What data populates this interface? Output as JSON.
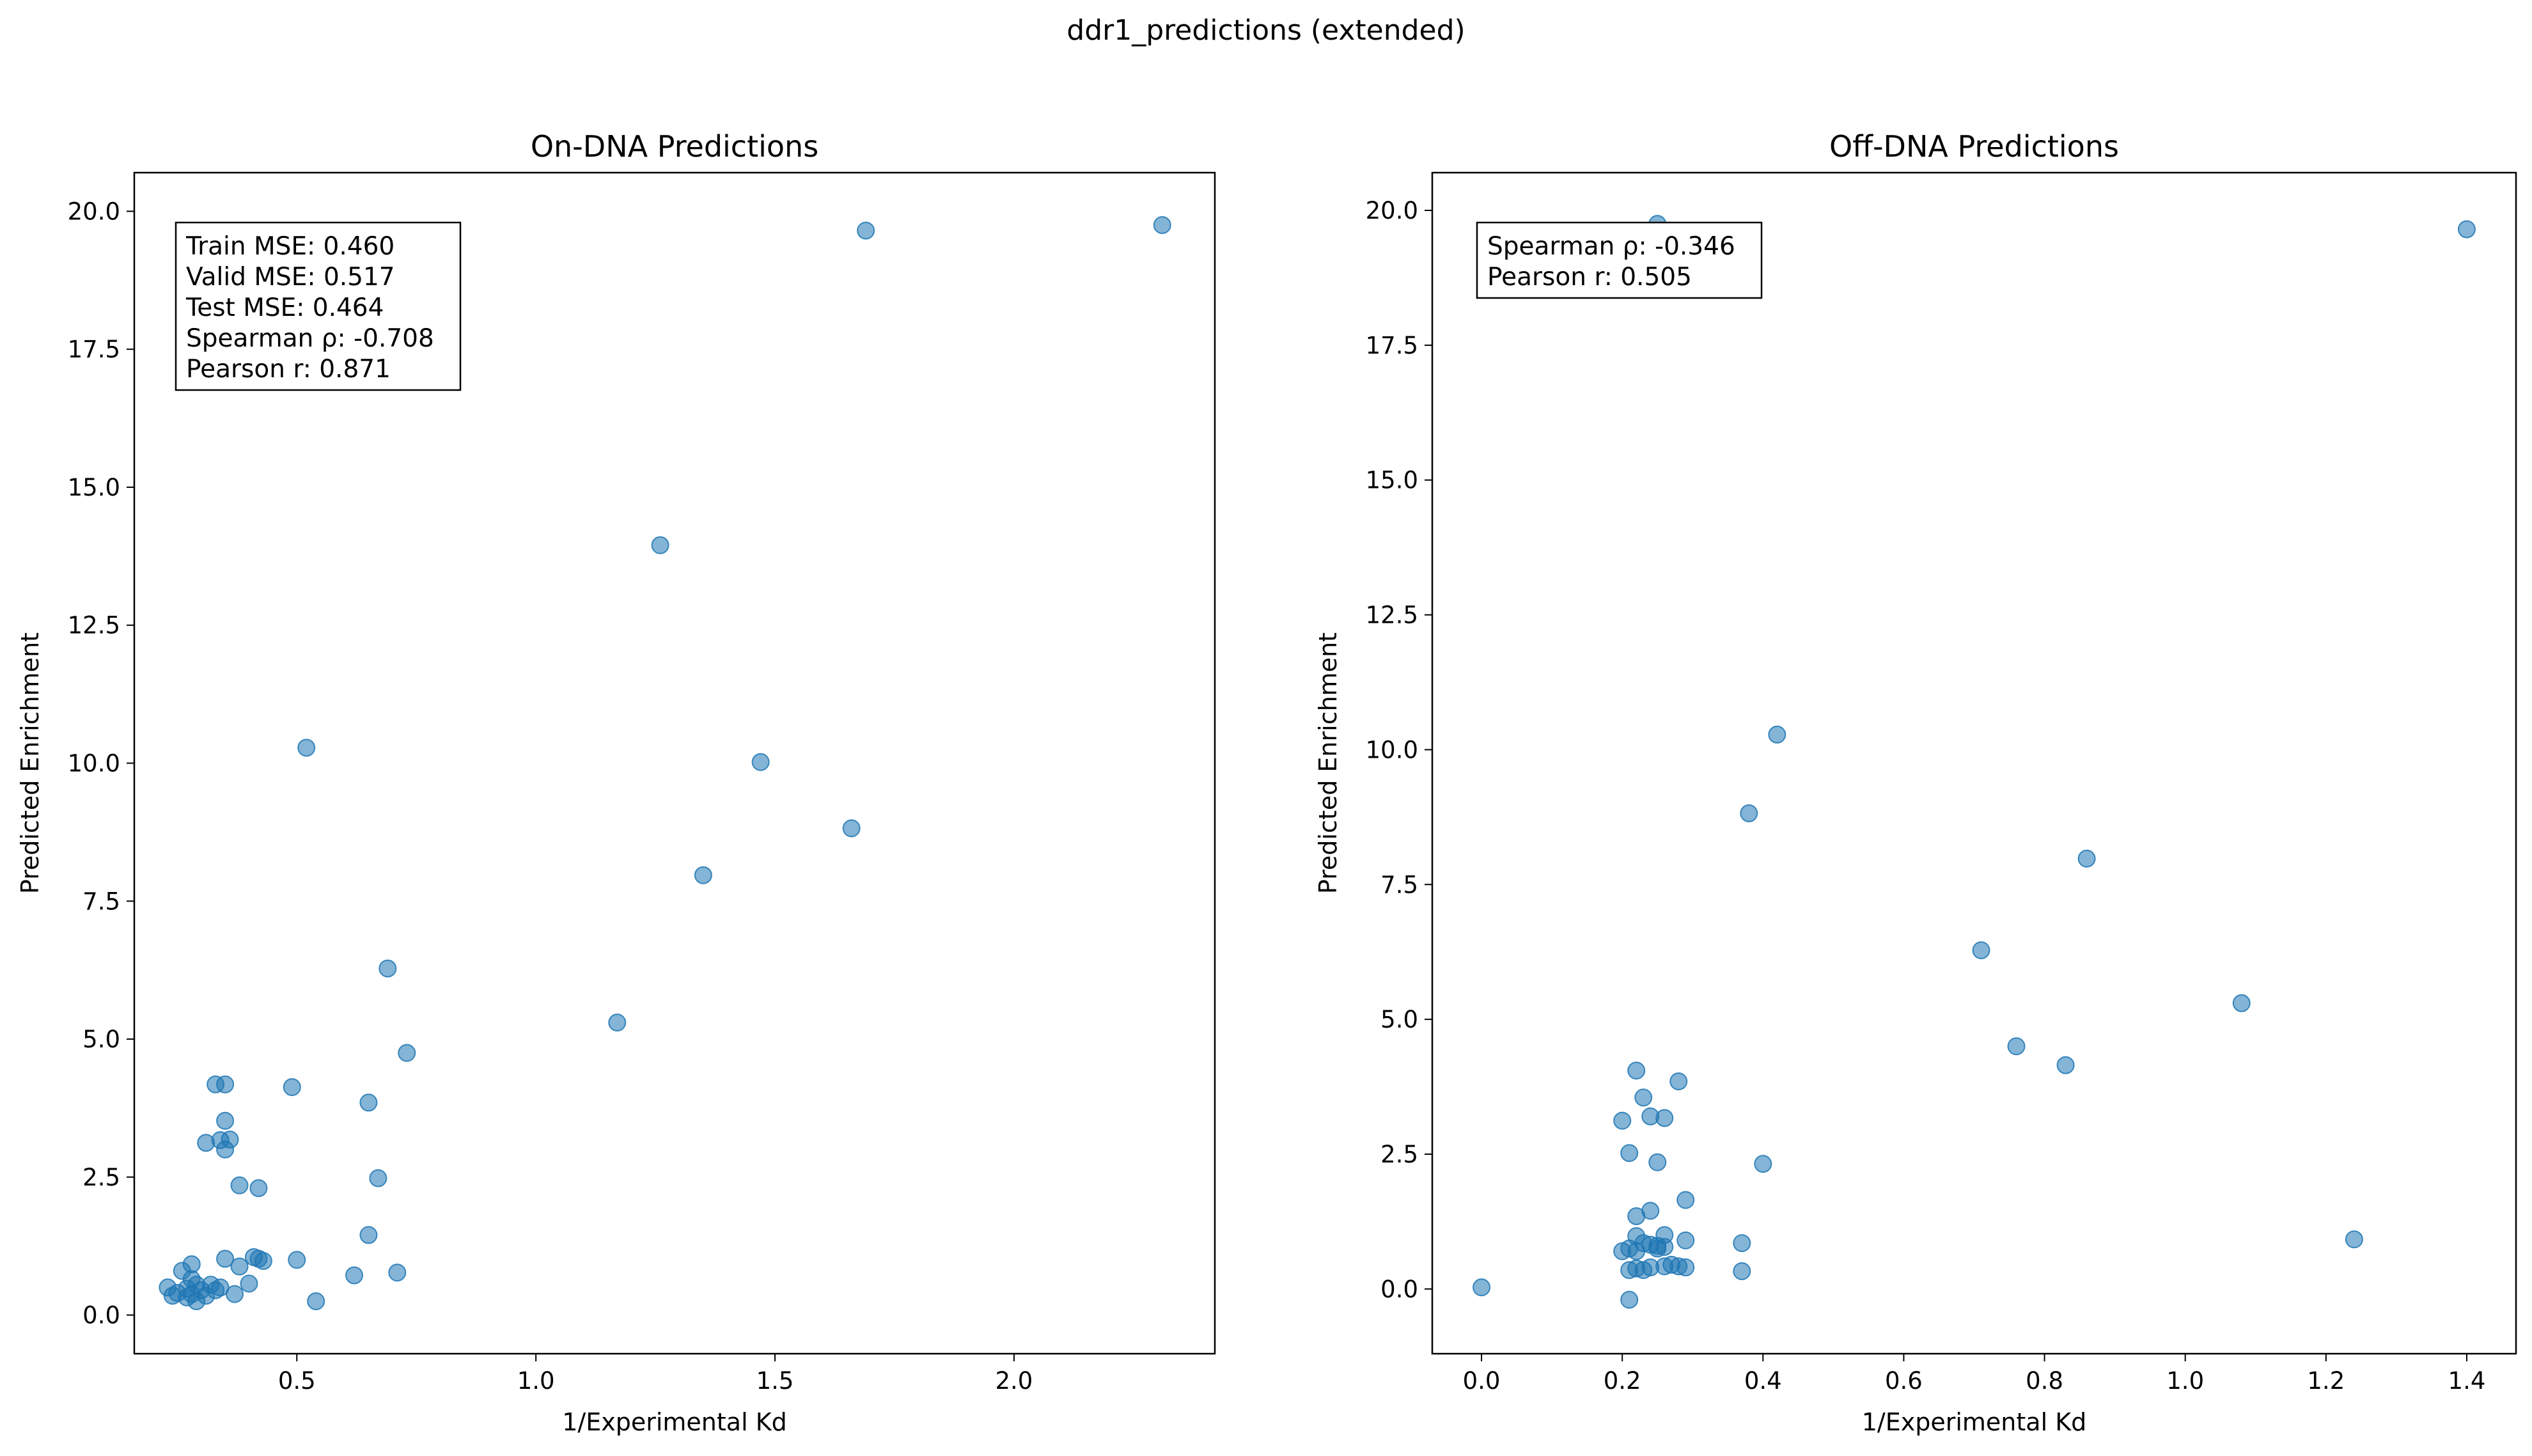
{
  "figure": {
    "suptitle": "ddr1_predictions (extended)",
    "point_color": "#1f77b4"
  },
  "chart_data": [
    {
      "type": "scatter",
      "title": "On-DNA Predictions",
      "xlabel": "1/Experimental Kd",
      "ylabel": "Predicted Enrichment",
      "xlim": [
        0.16,
        2.42
      ],
      "ylim": [
        -0.7,
        20.7
      ],
      "xticks": [
        0.5,
        1.0,
        1.5,
        2.0
      ],
      "xtick_labels": [
        "0.5",
        "1.0",
        "1.5",
        "2.0"
      ],
      "yticks": [
        0,
        2.5,
        5,
        7.5,
        10,
        12.5,
        15,
        17.5,
        20
      ],
      "ytick_labels": [
        "0.0",
        "2.5",
        "5.0",
        "7.5",
        "10.0",
        "12.5",
        "15.0",
        "17.5",
        "20.0"
      ],
      "annotation_lines": [
        "Train MSE: 0.460",
        "Valid MSE: 0.517",
        "Test MSE: 0.464",
        "Spearman ρ: -0.708",
        "Pearson r: 0.871"
      ],
      "grid": false,
      "points": [
        [
          2.31,
          19.75
        ],
        [
          1.69,
          19.65
        ],
        [
          1.26,
          13.95
        ],
        [
          0.52,
          10.28
        ],
        [
          1.47,
          10.02
        ],
        [
          1.66,
          8.82
        ],
        [
          1.35,
          7.97
        ],
        [
          0.69,
          6.28
        ],
        [
          1.17,
          5.3
        ],
        [
          0.73,
          4.75
        ],
        [
          0.33,
          4.18
        ],
        [
          0.35,
          4.18
        ],
        [
          0.49,
          4.13
        ],
        [
          0.65,
          3.85
        ],
        [
          0.35,
          3.52
        ],
        [
          0.31,
          3.12
        ],
        [
          0.34,
          3.17
        ],
        [
          0.36,
          3.18
        ],
        [
          0.35,
          3.0
        ],
        [
          0.67,
          2.48
        ],
        [
          0.38,
          2.35
        ],
        [
          0.42,
          2.3
        ],
        [
          0.65,
          1.45
        ],
        [
          0.41,
          1.05
        ],
        [
          0.42,
          1.02
        ],
        [
          0.35,
          1.02
        ],
        [
          0.5,
          1.0
        ],
        [
          0.43,
          0.98
        ],
        [
          0.28,
          0.92
        ],
        [
          0.38,
          0.88
        ],
        [
          0.26,
          0.8
        ],
        [
          0.28,
          0.65
        ],
        [
          0.71,
          0.77
        ],
        [
          0.62,
          0.72
        ],
        [
          0.4,
          0.57
        ],
        [
          0.29,
          0.55
        ],
        [
          0.32,
          0.55
        ],
        [
          0.34,
          0.5
        ],
        [
          0.23,
          0.5
        ],
        [
          0.27,
          0.48
        ],
        [
          0.33,
          0.45
        ],
        [
          0.25,
          0.4
        ],
        [
          0.28,
          0.38
        ],
        [
          0.31,
          0.35
        ],
        [
          0.24,
          0.35
        ],
        [
          0.27,
          0.32
        ],
        [
          0.37,
          0.38
        ],
        [
          0.54,
          0.25
        ],
        [
          0.29,
          0.25
        ],
        [
          0.3,
          0.45
        ]
      ]
    },
    {
      "type": "scatter",
      "title": "Off-DNA Predictions",
      "xlabel": "1/Experimental Kd",
      "ylabel": "Predicted Enrichment",
      "xlim": [
        -0.07,
        1.47
      ],
      "ylim": [
        -1.2,
        20.7
      ],
      "xticks": [
        0.0,
        0.2,
        0.4,
        0.6,
        0.8,
        1.0,
        1.2,
        1.4
      ],
      "xtick_labels": [
        "0.0",
        "0.2",
        "0.4",
        "0.6",
        "0.8",
        "1.0",
        "1.2",
        "1.4"
      ],
      "yticks": [
        0,
        2.5,
        5,
        7.5,
        10,
        12.5,
        15,
        17.5,
        20
      ],
      "ytick_labels": [
        "0.0",
        "2.5",
        "5.0",
        "7.5",
        "10.0",
        "12.5",
        "15.0",
        "17.5",
        "20.0"
      ],
      "annotation_lines": [
        "Spearman ρ: -0.346",
        "Pearson r: 0.505"
      ],
      "grid": false,
      "points": [
        [
          0.25,
          19.75
        ],
        [
          1.4,
          19.65
        ],
        [
          0.42,
          10.28
        ],
        [
          0.38,
          8.82
        ],
        [
          0.86,
          7.98
        ],
        [
          0.71,
          6.28
        ],
        [
          1.08,
          5.3
        ],
        [
          0.76,
          4.5
        ],
        [
          0.83,
          4.15
        ],
        [
          0.22,
          4.05
        ],
        [
          0.28,
          3.85
        ],
        [
          0.23,
          3.55
        ],
        [
          0.24,
          3.2
        ],
        [
          0.26,
          3.17
        ],
        [
          0.2,
          3.12
        ],
        [
          0.21,
          2.52
        ],
        [
          0.25,
          2.35
        ],
        [
          0.4,
          2.32
        ],
        [
          0.29,
          1.65
        ],
        [
          0.24,
          1.45
        ],
        [
          0.22,
          1.35
        ],
        [
          0.22,
          0.98
        ],
        [
          0.26,
          1.0
        ],
        [
          0.29,
          0.9
        ],
        [
          0.37,
          0.85
        ],
        [
          0.23,
          0.85
        ],
        [
          0.24,
          0.82
        ],
        [
          0.25,
          0.8
        ],
        [
          0.26,
          0.78
        ],
        [
          0.21,
          0.75
        ],
        [
          0.2,
          0.7
        ],
        [
          0.25,
          0.75
        ],
        [
          0.22,
          0.7
        ],
        [
          1.24,
          0.92
        ],
        [
          0.27,
          0.45
        ],
        [
          0.28,
          0.42
        ],
        [
          0.29,
          0.4
        ],
        [
          0.24,
          0.4
        ],
        [
          0.21,
          0.35
        ],
        [
          0.22,
          0.38
        ],
        [
          0.26,
          0.42
        ],
        [
          0.37,
          0.33
        ],
        [
          0.0,
          0.03
        ],
        [
          0.21,
          -0.2
        ],
        [
          0.23,
          0.35
        ]
      ]
    }
  ]
}
